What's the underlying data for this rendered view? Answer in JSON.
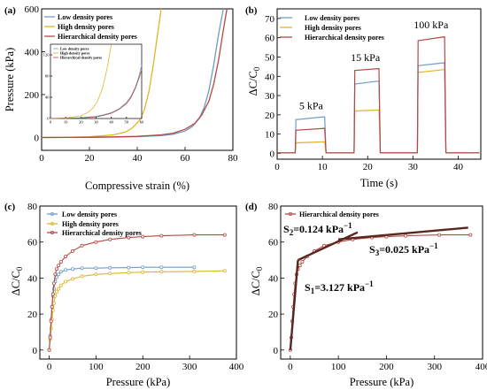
{
  "colors": {
    "low": "#6f9cc8",
    "high": "#e0b52c",
    "hier": "#b34a42",
    "fit": "#5a2620",
    "frame": "#000000"
  },
  "panels": {
    "a": {
      "label": "(a)",
      "xlabel": "Compressive strain (%)",
      "ylabel": "Pressure (kPa)",
      "legend": [
        "Low density pores",
        "High density pores",
        "Hierarchical density pores"
      ]
    },
    "b": {
      "label": "(b)",
      "xlabel": "Time (s)",
      "ylabel": "ΔC/C",
      "ylabel_sub": "0",
      "legend": [
        "Low density pores",
        "High density pores",
        "Hierarchical density pores"
      ],
      "annotations": [
        "5 kPa",
        "15 kPa",
        "100 kPa"
      ]
    },
    "c": {
      "label": "(c)",
      "xlabel": "Pressure (kPa)",
      "ylabel": "ΔC/C",
      "ylabel_sub": "0",
      "legend": [
        "Low density pores",
        "High density pores",
        "Hierarchical density pores"
      ]
    },
    "d": {
      "label": "(d)",
      "xlabel": "Pressure (kPa)",
      "ylabel": "ΔC/C",
      "ylabel_sub": "0",
      "legend": [
        "Hierarchical density pores"
      ],
      "slopes": [
        {
          "name": "S",
          "sub": "1",
          "value": "=3.127 kPa",
          "sup": "−1"
        },
        {
          "name": "S",
          "sub": "2",
          "value": "=0.124 kPa",
          "sup": "−1"
        },
        {
          "name": "S",
          "sub": "3",
          "value": "=0.025 kPa",
          "sup": "−1"
        }
      ]
    }
  },
  "chart_data": [
    {
      "panel": "a",
      "type": "line",
      "xlabel": "Compressive strain (%)",
      "ylabel": "Pressure (kPa)",
      "xlim": [
        0,
        80
      ],
      "ylim": [
        -60,
        600
      ],
      "xticks": [
        0,
        20,
        40,
        60,
        80
      ],
      "yticks": [
        0,
        200,
        400,
        600
      ],
      "xticklabels": [
        "0",
        "20",
        "40",
        "60",
        "80"
      ],
      "yticklabels": [
        "0",
        "200",
        "400",
        "600"
      ],
      "legend_position": "upper-left",
      "series": [
        {
          "name": "Low density pores",
          "key": "low",
          "x": [
            0,
            10,
            20,
            30,
            40,
            50,
            55,
            60,
            63,
            66,
            68,
            70,
            72,
            74,
            76
          ],
          "y": [
            0,
            0.3,
            1,
            2,
            4,
            9,
            15,
            30,
            50,
            90,
            140,
            220,
            340,
            480,
            600
          ]
        },
        {
          "name": "High density pores",
          "key": "high",
          "x": [
            0,
            10,
            20,
            30,
            35,
            38,
            41,
            43,
            45,
            47,
            48.5,
            50
          ],
          "y": [
            0,
            0.5,
            3,
            12,
            25,
            45,
            80,
            130,
            220,
            360,
            480,
            600
          ]
        },
        {
          "name": "Hierarchical density pores",
          "key": "hier",
          "x": [
            0,
            10,
            20,
            30,
            40,
            50,
            55,
            60,
            64,
            67,
            70,
            72,
            74,
            76,
            77.5
          ],
          "y": [
            0,
            0.2,
            1,
            2.5,
            5,
            12,
            20,
            38,
            65,
            105,
            170,
            250,
            360,
            500,
            600
          ]
        }
      ],
      "inset": {
        "xlim": [
          0,
          60
        ],
        "ylim": [
          0,
          140
        ],
        "xticks": [
          0,
          10,
          20,
          30,
          40,
          50,
          60
        ],
        "yticks": [
          0,
          40,
          80,
          120
        ],
        "xticklabels": [
          "0",
          "10",
          "20",
          "30",
          "40",
          "50",
          "60"
        ],
        "yticklabels": [
          "0",
          "40",
          "80",
          "120"
        ],
        "series": [
          {
            "name": "Low density pores",
            "key": "low",
            "x": [
              0,
              10,
              20,
              30,
              35,
              40,
              45,
              50,
              53,
              56,
              58,
              60
            ],
            "y": [
              0,
              0.5,
              1.5,
              4,
              7,
              11,
              18,
              30,
              42,
              60,
              78,
              100
            ]
          },
          {
            "name": "High density pores",
            "key": "high",
            "x": [
              0,
              10,
              20,
              25,
              28,
              31,
              34,
              36,
              38,
              40
            ],
            "y": [
              0,
              1,
              5,
              12,
              20,
              33,
              55,
              78,
              105,
              140
            ]
          },
          {
            "name": "Hierarchical density pores",
            "key": "hier",
            "x": [
              0,
              10,
              20,
              30,
              35,
              40,
              45,
              50,
              53,
              56,
              59,
              60
            ],
            "y": [
              0,
              0.3,
              1,
              3,
              6,
              10,
              17,
              28,
              40,
              58,
              82,
              92
            ]
          }
        ]
      }
    },
    {
      "panel": "b",
      "type": "line",
      "xlabel": "Time (s)",
      "ylabel": "ΔC/C0",
      "xlim": [
        0,
        45
      ],
      "ylim": [
        -3,
        75
      ],
      "xticks": [
        0,
        10,
        20,
        30,
        40
      ],
      "yticks": [
        0,
        10,
        20,
        30,
        40,
        50,
        60,
        70
      ],
      "xticklabels": [
        "0",
        "10",
        "20",
        "30",
        "40"
      ],
      "yticklabels": [
        "0",
        "10",
        "20",
        "30",
        "40",
        "50",
        "60",
        "70"
      ],
      "legend_position": "upper-left",
      "annotations": [
        {
          "text": "5 kPa",
          "x": 7.5,
          "y": 23
        },
        {
          "text": "15 kPa",
          "x": 19.5,
          "y": 48
        },
        {
          "text": "100 kPa",
          "x": 34,
          "y": 65
        }
      ],
      "pulses": [
        {
          "start": 4,
          "end": 10.5
        },
        {
          "start": 17,
          "end": 22.5
        },
        {
          "start": 31,
          "end": 37
        }
      ],
      "series": [
        {
          "name": "Low density pores",
          "key": "low",
          "levels": [
            [
              17.5,
              19
            ],
            [
              36,
              37.5
            ],
            [
              45.5,
              47
            ]
          ]
        },
        {
          "name": "High density pores",
          "key": "high",
          "levels": [
            [
              5.5,
              6
            ],
            [
              22,
              22.5
            ],
            [
              42,
              43.5
            ]
          ]
        },
        {
          "name": "Hierarchical density pores",
          "key": "hier",
          "levels": [
            [
              12,
              13
            ],
            [
              43,
              44
            ],
            [
              58.5,
              60.5
            ]
          ]
        }
      ]
    },
    {
      "panel": "c",
      "type": "line",
      "xlabel": "Pressure (kPa)",
      "ylabel": "ΔC/C0",
      "xlim": [
        -20,
        400
      ],
      "ylim": [
        -5,
        80
      ],
      "xticks": [
        0,
        100,
        200,
        300,
        400
      ],
      "yticks": [
        0,
        20,
        40,
        60,
        80
      ],
      "xticklabels": [
        "0",
        "100",
        "200",
        "300",
        "400"
      ],
      "yticklabels": [
        "0",
        "20",
        "40",
        "60",
        "80"
      ],
      "legend_position": "upper-left",
      "series": [
        {
          "name": "Low density pores",
          "key": "low",
          "x": [
            0,
            2,
            4,
            6,
            8,
            10,
            13,
            16,
            20,
            25,
            35,
            50,
            70,
            100,
            130,
            170,
            200,
            240,
            310
          ],
          "y": [
            0,
            8,
            17,
            24,
            30,
            34,
            38,
            40.5,
            42,
            43.5,
            44.5,
            45,
            45.5,
            45.5,
            45.7,
            45.8,
            46,
            46,
            46
          ]
        },
        {
          "name": "High density pores",
          "key": "high",
          "x": [
            0,
            2,
            4,
            6,
            8,
            10,
            13,
            16,
            20,
            25,
            35,
            50,
            70,
            100,
            130,
            170,
            200,
            240,
            310,
            375
          ],
          "y": [
            0,
            6,
            12,
            17,
            22,
            26,
            30,
            32.5,
            34,
            36,
            38,
            39.5,
            41,
            42,
            42.5,
            43,
            43.3,
            43.5,
            43.7,
            44
          ]
        },
        {
          "name": "Hierarchical density pores",
          "key": "hier",
          "x": [
            0,
            2,
            4,
            6,
            8,
            10,
            13,
            16,
            20,
            25,
            35,
            50,
            70,
            100,
            130,
            170,
            200,
            240,
            310,
            375
          ],
          "y": [
            0,
            7,
            16,
            24,
            31,
            37,
            42,
            45,
            47,
            49,
            52,
            55,
            58,
            60,
            61.5,
            62.5,
            63,
            63.5,
            64,
            64
          ]
        }
      ]
    },
    {
      "panel": "d",
      "type": "line",
      "xlabel": "Pressure (kPa)",
      "ylabel": "ΔC/C0",
      "xlim": [
        -20,
        400
      ],
      "ylim": [
        -5,
        80
      ],
      "xticks": [
        0,
        100,
        200,
        300,
        400
      ],
      "yticks": [
        0,
        20,
        40,
        60,
        80
      ],
      "xticklabels": [
        "0",
        "100",
        "200",
        "300",
        "400"
      ],
      "yticklabels": [
        "0",
        "20",
        "40",
        "60",
        "80"
      ],
      "legend_position": "upper-left",
      "series": [
        {
          "name": "Hierarchical density pores",
          "key": "hier",
          "x": [
            0,
            2,
            4,
            6,
            8,
            10,
            13,
            16,
            20,
            25,
            35,
            50,
            70,
            100,
            130,
            170,
            200,
            240,
            310,
            375
          ],
          "y": [
            0,
            7,
            16,
            24,
            31,
            37,
            42,
            45,
            47,
            49,
            52,
            55,
            58,
            60,
            61.5,
            62.5,
            63,
            63.5,
            64,
            64
          ]
        }
      ],
      "fits": [
        {
          "x": [
            0,
            16
          ],
          "y": [
            0,
            50
          ]
        },
        {
          "x": [
            16,
            140
          ],
          "y": [
            50,
            65.4
          ]
        },
        {
          "x": [
            100,
            370
          ],
          "y": [
            61.5,
            68
          ]
        }
      ],
      "slopes": [
        "S1=3.127 kPa−1",
        "S2=0.124 kPa−1",
        "S3=0.025 kPa−1"
      ]
    }
  ]
}
